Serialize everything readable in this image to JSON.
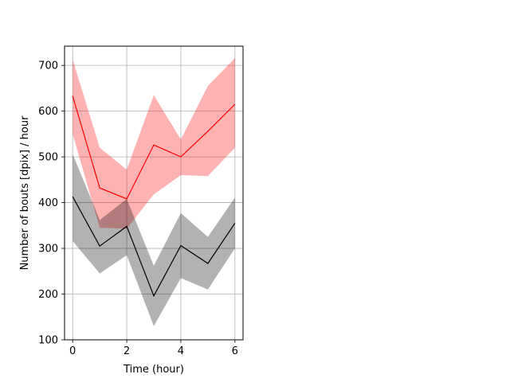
{
  "chart_data": {
    "type": "line",
    "title": "",
    "xlabel": "Time (hour)",
    "ylabel": "Number of bouts [dpix]  / hour",
    "x": [
      0,
      1,
      2,
      3,
      4,
      5,
      6
    ],
    "xlim": [
      -0.3,
      6.3
    ],
    "ylim": [
      100,
      742
    ],
    "xticks": [
      0,
      2,
      4,
      6
    ],
    "yticks": [
      100,
      200,
      300,
      400,
      500,
      600,
      700
    ],
    "grid": true,
    "series": [
      {
        "color": "#ff0000",
        "band_color": "#ff0000",
        "values": [
          633,
          432,
          408,
          526,
          500,
          556,
          615
        ],
        "upper": [
          713,
          520,
          472,
          635,
          538,
          655,
          716
        ],
        "lower": [
          550,
          345,
          343,
          418,
          460,
          458,
          520
        ]
      },
      {
        "color": "#000000",
        "band_color": "#000000",
        "values": [
          413,
          305,
          348,
          196,
          306,
          267,
          355
        ],
        "upper": [
          506,
          362,
          408,
          262,
          377,
          325,
          411
        ],
        "lower": [
          316,
          245,
          285,
          130,
          235,
          210,
          300
        ]
      }
    ]
  }
}
